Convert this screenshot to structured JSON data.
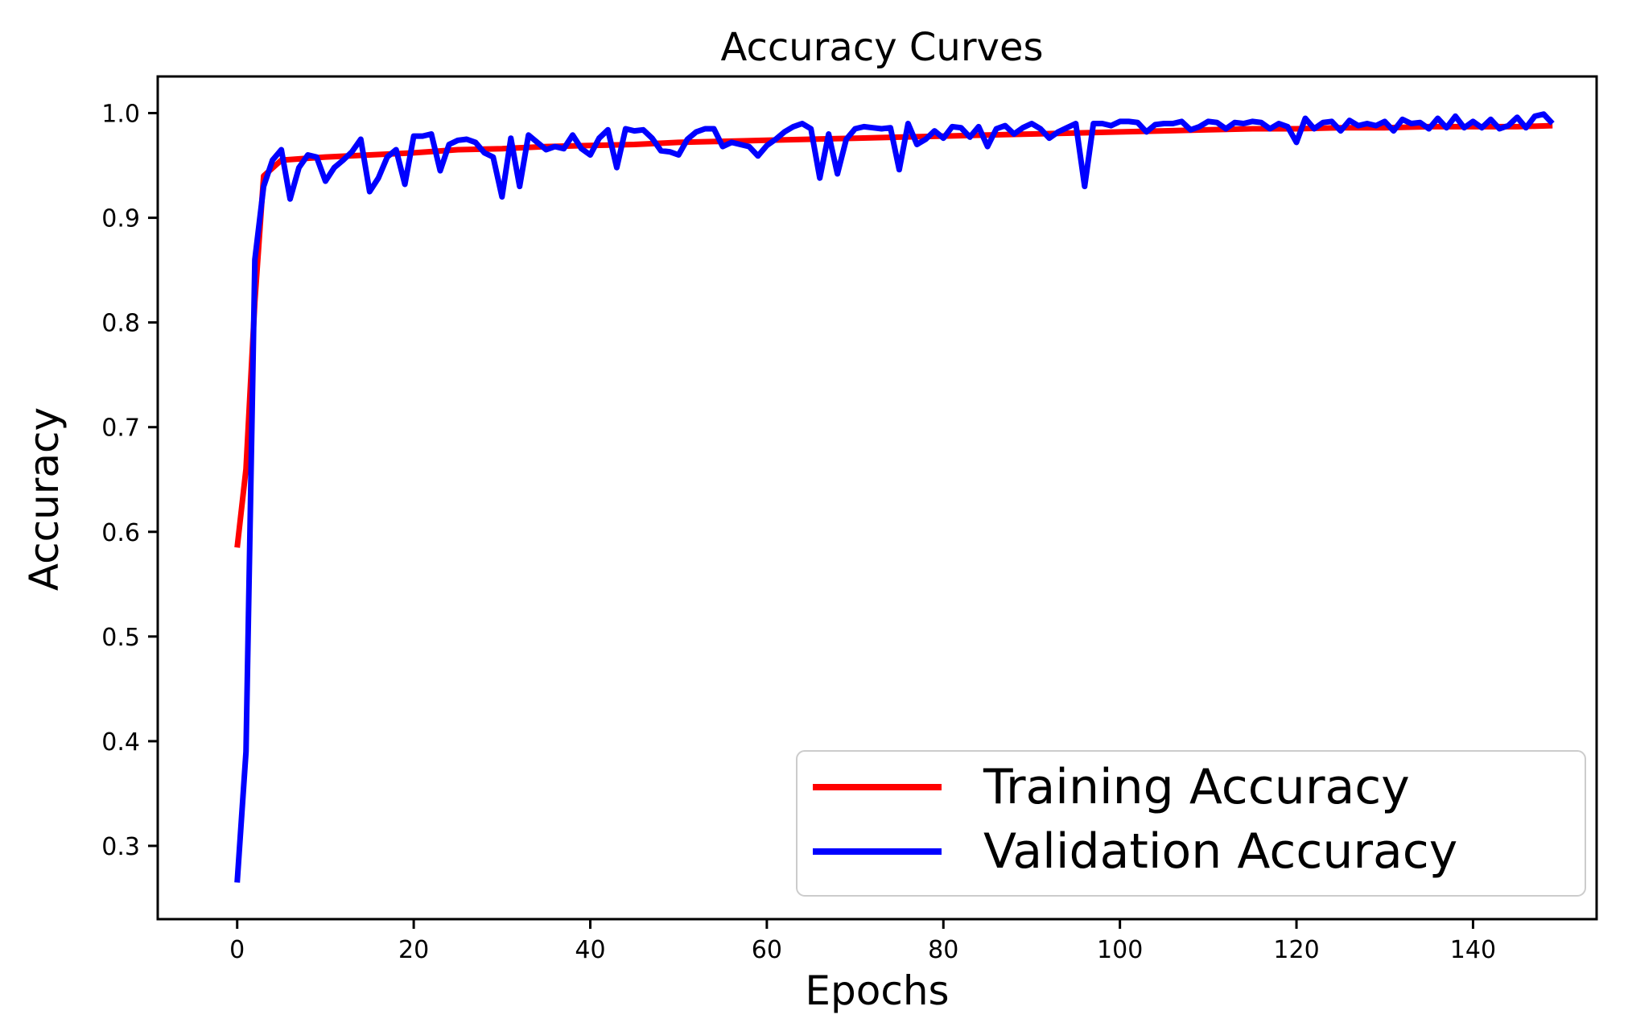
{
  "chart_data": {
    "type": "line",
    "title": "Accuracy Curves",
    "xlabel": "Epochs",
    "ylabel": "Accuracy",
    "xlim": [
      -9,
      154
    ],
    "ylim": [
      0.23,
      1.035
    ],
    "xticks": [
      0,
      20,
      40,
      60,
      80,
      100,
      120,
      140
    ],
    "yticks": [
      0.3,
      0.4,
      0.5,
      0.6,
      0.7,
      0.8,
      0.9,
      1.0
    ],
    "xtick_labels": [
      "0",
      "20",
      "40",
      "60",
      "80",
      "100",
      "120",
      "140"
    ],
    "ytick_labels": [
      "0.3",
      "0.4",
      "0.5",
      "0.6",
      "0.7",
      "0.8",
      "0.9",
      "1.0"
    ],
    "grid": false,
    "legend_position": "lower-right",
    "series": [
      {
        "name": "Training Accuracy",
        "color": "#ff0000",
        "x": [
          0,
          1,
          2,
          3,
          5,
          10,
          15,
          20,
          25,
          30,
          35,
          40,
          45,
          50,
          55,
          60,
          65,
          70,
          75,
          80,
          85,
          90,
          95,
          100,
          105,
          110,
          115,
          120,
          125,
          130,
          135,
          140,
          145,
          149
        ],
        "y": [
          0.585,
          0.66,
          0.82,
          0.94,
          0.955,
          0.958,
          0.96,
          0.962,
          0.965,
          0.966,
          0.968,
          0.969,
          0.97,
          0.972,
          0.973,
          0.974,
          0.975,
          0.976,
          0.977,
          0.978,
          0.979,
          0.98,
          0.981,
          0.982,
          0.983,
          0.984,
          0.985,
          0.985,
          0.986,
          0.986,
          0.987,
          0.987,
          0.987,
          0.988
        ]
      },
      {
        "name": "Validation Accuracy",
        "color": "#0000ff",
        "x": [
          0,
          1,
          2,
          3,
          4,
          5,
          6,
          7,
          8,
          9,
          10,
          11,
          12,
          13,
          14,
          15,
          16,
          17,
          18,
          19,
          20,
          21,
          22,
          23,
          24,
          25,
          26,
          27,
          28,
          29,
          30,
          31,
          32,
          33,
          34,
          35,
          36,
          37,
          38,
          39,
          40,
          41,
          42,
          43,
          44,
          45,
          46,
          47,
          48,
          49,
          50,
          51,
          52,
          53,
          54,
          55,
          56,
          57,
          58,
          59,
          60,
          61,
          62,
          63,
          64,
          65,
          66,
          67,
          68,
          69,
          70,
          71,
          72,
          73,
          74,
          75,
          76,
          77,
          78,
          79,
          80,
          81,
          82,
          83,
          84,
          85,
          86,
          87,
          88,
          89,
          90,
          91,
          92,
          93,
          94,
          95,
          96,
          97,
          98,
          99,
          100,
          101,
          102,
          103,
          104,
          105,
          106,
          107,
          108,
          109,
          110,
          111,
          112,
          113,
          114,
          115,
          116,
          117,
          118,
          119,
          120,
          121,
          122,
          123,
          124,
          125,
          126,
          127,
          128,
          129,
          130,
          131,
          132,
          133,
          134,
          135,
          136,
          137,
          138,
          139,
          140,
          141,
          142,
          143,
          144,
          145,
          146,
          147,
          148,
          149
        ],
        "y": [
          0.265,
          0.39,
          0.86,
          0.93,
          0.955,
          0.965,
          0.918,
          0.948,
          0.96,
          0.958,
          0.935,
          0.948,
          0.955,
          0.963,
          0.975,
          0.925,
          0.938,
          0.958,
          0.965,
          0.932,
          0.978,
          0.978,
          0.98,
          0.945,
          0.97,
          0.974,
          0.975,
          0.972,
          0.962,
          0.958,
          0.92,
          0.976,
          0.93,
          0.979,
          0.972,
          0.965,
          0.968,
          0.966,
          0.979,
          0.966,
          0.96,
          0.976,
          0.984,
          0.948,
          0.985,
          0.983,
          0.984,
          0.976,
          0.964,
          0.963,
          0.96,
          0.975,
          0.982,
          0.985,
          0.985,
          0.968,
          0.972,
          0.97,
          0.968,
          0.959,
          0.969,
          0.975,
          0.982,
          0.987,
          0.99,
          0.985,
          0.938,
          0.98,
          0.942,
          0.975,
          0.985,
          0.987,
          0.986,
          0.985,
          0.986,
          0.946,
          0.99,
          0.97,
          0.975,
          0.983,
          0.976,
          0.987,
          0.986,
          0.977,
          0.987,
          0.968,
          0.985,
          0.988,
          0.98,
          0.986,
          0.99,
          0.985,
          0.976,
          0.982,
          0.986,
          0.99,
          0.93,
          0.99,
          0.99,
          0.988,
          0.992,
          0.992,
          0.991,
          0.982,
          0.989,
          0.99,
          0.99,
          0.992,
          0.984,
          0.987,
          0.992,
          0.991,
          0.985,
          0.991,
          0.99,
          0.992,
          0.991,
          0.985,
          0.99,
          0.987,
          0.972,
          0.995,
          0.985,
          0.991,
          0.992,
          0.983,
          0.993,
          0.988,
          0.99,
          0.988,
          0.992,
          0.983,
          0.994,
          0.99,
          0.991,
          0.985,
          0.995,
          0.986,
          0.997,
          0.986,
          0.992,
          0.986,
          0.994,
          0.985,
          0.988,
          0.996,
          0.986,
          0.997,
          0.999,
          0.99
        ]
      }
    ]
  }
}
